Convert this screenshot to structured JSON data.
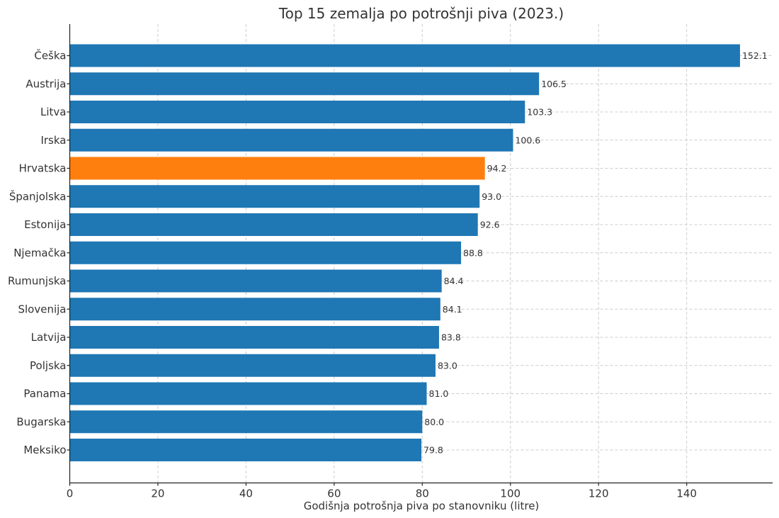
{
  "chart_data": {
    "type": "bar",
    "orientation": "horizontal",
    "title": "Top 15 zemalja po potrošnji piva (2023.)",
    "xlabel": "Godišnja potrošnja piva po stanovniku (litre)",
    "ylabel": "",
    "xlim": [
      0,
      160
    ],
    "xticks": [
      0,
      20,
      40,
      60,
      80,
      100,
      120,
      140
    ],
    "grid": true,
    "categories": [
      "Češka",
      "Austrija",
      "Litva",
      "Irska",
      "Hrvatska",
      "Španjolska",
      "Estonija",
      "Njemačka",
      "Rumunjska",
      "Slovenija",
      "Latvija",
      "Poljska",
      "Panama",
      "Bugarska",
      "Meksiko"
    ],
    "values": [
      152.1,
      106.5,
      103.3,
      100.6,
      94.2,
      93.0,
      92.6,
      88.8,
      84.4,
      84.1,
      83.8,
      83.0,
      81.0,
      80.0,
      79.8
    ],
    "value_labels": [
      "152.1",
      "106.5",
      "103.3",
      "100.6",
      "94.2",
      "93.0",
      "92.6",
      "88.8",
      "84.4",
      "84.1",
      "83.8",
      "83.0",
      "81.0",
      "80.0",
      "79.8"
    ],
    "bar_color": "#1f77b4",
    "highlight": {
      "category": "Hrvatska",
      "color": "#ff7f0e"
    }
  }
}
